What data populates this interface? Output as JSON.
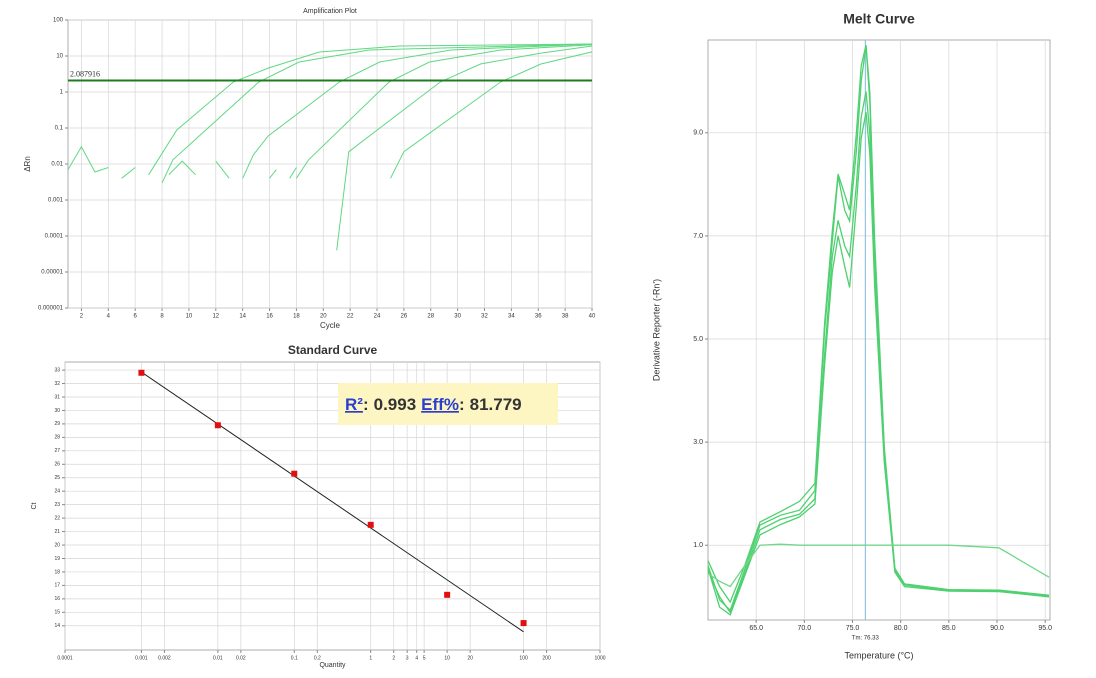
{
  "chart_data": [
    {
      "type": "line",
      "title": "Amplification Plot",
      "x_label": "Cycle",
      "y_label": "ΔRn",
      "xlim": [
        1,
        40
      ],
      "xticks": [
        2,
        4,
        6,
        8,
        10,
        12,
        14,
        16,
        18,
        20,
        22,
        24,
        26,
        28,
        30,
        32,
        34,
        36,
        38,
        40
      ],
      "ylim": [
        1e-06,
        100
      ],
      "yticks": [
        100,
        10,
        1,
        0.1,
        0.01,
        0.001,
        0.0001,
        1e-05,
        1e-06
      ],
      "log_y": true,
      "grid": true,
      "threshold": 2.087916,
      "threshold_color": "#1e7b1e",
      "threshold_label_color": "#d02020",
      "series": [
        {
          "color": "#5fd882",
          "x": [
            7,
            9.1,
            13.3,
            15.9,
            19.7,
            25.7,
            40
          ],
          "values": [
            0.005,
            0.088,
            1.9,
            4.6,
            12.9,
            19,
            21.5
          ]
        },
        {
          "color": "#5fd882",
          "x": [
            8,
            8.8,
            15.2,
            18.2,
            23.4,
            40
          ],
          "values": [
            0.003,
            0.013,
            1.9,
            6.8,
            14.7,
            21.5
          ]
        },
        {
          "color": "#5fd882",
          "x": [
            14,
            14.8,
            15.9,
            21.2,
            24.2,
            29.5,
            40
          ],
          "values": [
            0.004,
            0.018,
            0.06,
            1.9,
            6.8,
            14.7,
            21.5
          ]
        },
        {
          "color": "#5fd882",
          "x": [
            18,
            18.9,
            24.9,
            27.9,
            33.2,
            40
          ],
          "values": [
            0.004,
            0.013,
            1.9,
            6.8,
            14.7,
            20.5
          ]
        },
        {
          "color": "#5fd882",
          "x": [
            21,
            21.9,
            28.7,
            31.7,
            36.2,
            40
          ],
          "values": [
            4e-05,
            0.022,
            1.9,
            6,
            12,
            19
          ]
        },
        {
          "color": "#5fd882",
          "x": [
            25,
            26,
            33.2,
            36.2,
            40
          ],
          "values": [
            0.004,
            0.022,
            1.9,
            6,
            13
          ]
        },
        {
          "color": "#5fd882",
          "x": [
            1,
            2,
            3,
            4,
            4.5,
            5,
            6,
            6.5,
            8.5,
            9.5,
            10.5,
            11,
            12,
            13,
            13.5,
            16,
            16.5,
            17,
            17.5,
            18
          ],
          "values": [
            0.007,
            0.03,
            0.006,
            0.008,
            null,
            0.004,
            0.008,
            null,
            0.005,
            0.012,
            0.005,
            null,
            0.012,
            0.004,
            null,
            0.004,
            0.007,
            null,
            0.004,
            0.008
          ]
        }
      ]
    },
    {
      "type": "scatter",
      "title": "Standard Curve",
      "x_label": "Quantity",
      "y_label": "Ct",
      "log_x": true,
      "xlim": [
        0.0001,
        1000
      ],
      "xticks": [
        0.0001,
        0.001,
        0.002,
        0.01,
        0.02,
        0.1,
        0.2,
        1,
        2,
        3,
        4,
        5,
        10,
        20,
        100,
        200,
        1000
      ],
      "ylim": [
        12.2,
        33.6
      ],
      "yticks": [
        14,
        15,
        16,
        17,
        18,
        19,
        20,
        21,
        22,
        23,
        24,
        25,
        26,
        27,
        28,
        29,
        30,
        31,
        32,
        33
      ],
      "grid": true,
      "color": "#e01010",
      "line_color": "#222222",
      "x": [
        0.001,
        0.01,
        0.1,
        1,
        10,
        100
      ],
      "values": [
        32.8,
        28.9,
        25.3,
        21.5,
        16.3,
        14.2
      ],
      "fit_line": {
        "x": [
          0.001,
          100
        ],
        "values": [
          32.85,
          13.55
        ]
      },
      "annotation": {
        "r2_label": "R²",
        "separator": ":",
        "r2": 0.993,
        "eff_label": "Eff%",
        "eff": 81.779
      }
    },
    {
      "type": "line",
      "title": "Melt Curve",
      "x_label": "Temperature (°C)",
      "y_label": "Derivative Reporter (-Rn')",
      "xlim": [
        60,
        95.5
      ],
      "xticks": [
        {
          "value": 65,
          "label": "65.0"
        },
        {
          "value": 70,
          "label": "70.0"
        },
        {
          "value": 75,
          "label": "75.0"
        },
        {
          "value": 80,
          "label": "80.0"
        },
        {
          "value": 85,
          "label": "85.0"
        },
        {
          "value": 90,
          "label": "90.0"
        },
        {
          "value": 95,
          "label": "95.0"
        }
      ],
      "ylim": [
        -0.45,
        10.8
      ],
      "yticks": [
        {
          "value": 1,
          "label": "1.0"
        },
        {
          "value": 3,
          "label": "3.0"
        },
        {
          "value": 5,
          "label": "5.0"
        },
        {
          "value": 7,
          "label": "7.0"
        },
        {
          "value": 9,
          "label": "9.0"
        }
      ],
      "grid": true,
      "tm": {
        "value": 76.33,
        "label": "Tm: 76.33"
      },
      "tm_color": "#7fb8d8",
      "series": [
        {
          "color": "#4fd070",
          "x": [
            60,
            61.2,
            62.3,
            63.8,
            65.4,
            67.5,
            69.5,
            71.1,
            72.1,
            72.9,
            73.5,
            74.2,
            74.7,
            75.4,
            75.9,
            76.4,
            76.8,
            77.3,
            78.3,
            79.4,
            80.4,
            85,
            90.2,
            95.4
          ],
          "values": [
            0.61,
            -0.06,
            -0.26,
            0.52,
            1.39,
            1.58,
            1.68,
            2.06,
            5.16,
            6.9,
            8.16,
            7.49,
            7.29,
            8.65,
            10.0,
            10.68,
            9.62,
            6.71,
            2.84,
            0.52,
            0.23,
            0.13,
            0.13,
            0.03
          ]
        },
        {
          "color": "#4fd070",
          "x": [
            60,
            61.2,
            62.3,
            63.8,
            65.4,
            67.5,
            69.5,
            71.1,
            72.1,
            72.9,
            73.5,
            74.2,
            74.7,
            75.4,
            75.9,
            76.4,
            76.8,
            77.3,
            78.3,
            79.4,
            80.4,
            85,
            90.2,
            95.4
          ],
          "values": [
            0.5,
            0.0,
            -0.3,
            0.45,
            1.3,
            1.5,
            1.6,
            1.9,
            4.7,
            6.6,
            7.3,
            6.8,
            6.6,
            8.0,
            9.3,
            9.8,
            9.0,
            6.3,
            2.7,
            0.5,
            0.2,
            0.12,
            0.12,
            0.02
          ]
        },
        {
          "color": "#4fd070",
          "x": [
            60,
            61.2,
            62.3,
            63.8,
            65.4,
            67.5,
            69.5,
            71.1,
            72.1,
            72.9,
            73.5,
            74.2,
            74.7,
            75.4,
            75.9,
            76.4,
            76.8,
            77.3,
            78.3,
            79.4,
            80.4,
            85,
            90.2,
            95.4
          ],
          "values": [
            0.7,
            0.2,
            -0.1,
            0.6,
            1.45,
            1.65,
            1.85,
            2.2,
            5.3,
            7.1,
            8.2,
            7.8,
            7.5,
            9.0,
            10.3,
            10.7,
            9.8,
            6.9,
            2.9,
            0.55,
            0.25,
            0.14,
            0.13,
            0.03
          ]
        },
        {
          "color": "#4fd070",
          "x": [
            60,
            61.2,
            62.3,
            63.8,
            65.4,
            67.5,
            69.5,
            71.1,
            72.1,
            72.9,
            73.5,
            74.2,
            74.7,
            75.4,
            75.9,
            76.4,
            76.8,
            77.3,
            78.3,
            79.4,
            80.4,
            85,
            90.2,
            95.4
          ],
          "values": [
            0.55,
            -0.2,
            -0.35,
            0.4,
            1.2,
            1.4,
            1.55,
            1.8,
            4.5,
            6.3,
            7.0,
            6.4,
            6.0,
            7.6,
            8.9,
            9.4,
            8.6,
            6.0,
            2.6,
            0.48,
            0.2,
            0.11,
            0.1,
            0.0
          ]
        },
        {
          "color": "#6fd88a",
          "x": [
            60,
            61.2,
            62.3,
            63.8,
            65.4,
            67.5,
            69.5,
            71.1,
            72.1,
            72.9,
            73.5,
            74.2,
            74.7,
            75.4,
            75.9,
            76.4,
            76.8,
            77.3,
            78.3,
            79.4,
            80.4,
            85,
            90.2,
            95.4
          ],
          "values": [
            0.45,
            0.3,
            0.2,
            0.6,
            1.0,
            1.02,
            1.0,
            1.0,
            1.0,
            1.0,
            1.0,
            1.0,
            1.0,
            1.0,
            1.0,
            1.0,
            1.0,
            1.0,
            1.0,
            1.0,
            1.0,
            1.0,
            0.95,
            0.38
          ]
        }
      ]
    }
  ]
}
